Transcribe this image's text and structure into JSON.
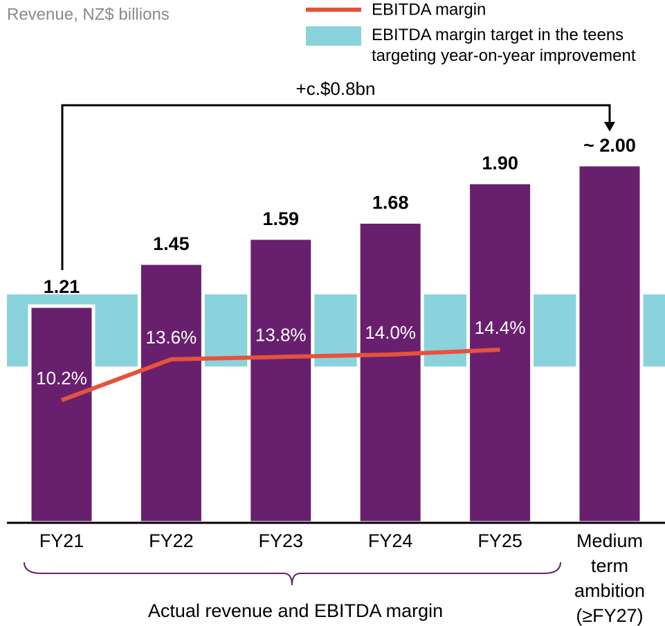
{
  "chart_data": {
    "type": "bar",
    "y_label": "Revenue, NZ$ billions",
    "categories": [
      "FY21",
      "FY22",
      "FY23",
      "FY24",
      "FY25",
      "Medium term ambition (≥FY27)"
    ],
    "values": [
      1.21,
      1.45,
      1.59,
      1.68,
      1.9,
      2.0
    ],
    "value_labels": [
      "1.21",
      "1.45",
      "1.59",
      "1.68",
      "1.90",
      "~ 2.00"
    ],
    "color": "#68206e",
    "ylim": [
      0,
      2.9
    ],
    "y2lim": [
      0,
      43.2
    ],
    "line_series": {
      "type": "line",
      "name": "EBITDA margin",
      "color": "#e8523a",
      "axis": "y2",
      "values": [
        10.2,
        13.6,
        13.8,
        14.0,
        14.4,
        null
      ],
      "value_labels": [
        "10.2%",
        "13.6%",
        "13.8%",
        "14.0%",
        "14.4%",
        null
      ]
    },
    "band": {
      "name": "EBITDA margin target in the teens targeting year-on-year improvement",
      "color": "#8ad3dc",
      "axis": "y2",
      "range": [
        13,
        19
      ]
    },
    "annotations": [
      "+c.$0.8bn",
      "Actual revenue and EBITDA margin"
    ]
  }
}
